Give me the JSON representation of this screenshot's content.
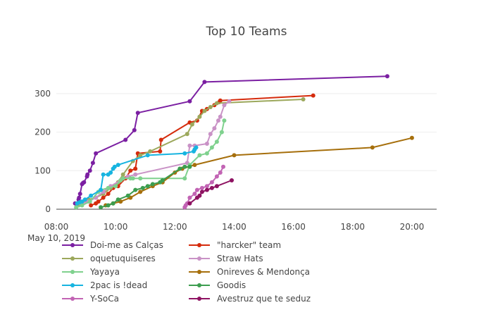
{
  "chart_data": {
    "type": "line",
    "title": "Top 10 Teams",
    "x_range": [
      "2019-05-10 08:00",
      "2019-05-10 20:50"
    ],
    "y_range": [
      0,
      360
    ],
    "grid": "horizontal",
    "legend_position": "bottom",
    "x_ticks": [
      "08:00",
      "10:00",
      "12:00",
      "14:00",
      "16:00",
      "18:00",
      "20:00"
    ],
    "x_tick_date": "May 10, 2019",
    "y_ticks": [
      "0",
      "100",
      "200",
      "300"
    ],
    "series": [
      {
        "name": "Doi-me as Calças",
        "color": "#7b1fa2",
        "x": [
          "08:38",
          "08:42",
          "08:45",
          "08:46",
          "08:48",
          "08:52",
          "08:54",
          "08:56",
          "09:02",
          "09:03",
          "09:08",
          "09:14",
          "09:20",
          "10:20",
          "10:38",
          "10:45",
          "12:30",
          "13:00",
          "19:10"
        ],
        "y": [
          15,
          15,
          25,
          30,
          40,
          65,
          68,
          70,
          85,
          90,
          100,
          120,
          145,
          180,
          205,
          250,
          280,
          330,
          345
        ]
      },
      {
        "name": "\"harcker\" team",
        "color": "#d52b0c",
        "x": [
          "09:10",
          "09:20",
          "09:25",
          "09:35",
          "09:45",
          "09:55",
          "10:05",
          "10:20",
          "10:30",
          "10:40",
          "10:45",
          "11:30",
          "11:32",
          "12:30",
          "12:45",
          "12:55",
          "13:05",
          "13:20",
          "13:30",
          "13:32",
          "16:40"
        ],
        "y": [
          10,
          15,
          20,
          30,
          40,
          55,
          60,
          80,
          100,
          105,
          145,
          150,
          180,
          225,
          230,
          255,
          260,
          270,
          278,
          282,
          295
        ]
      },
      {
        "name": "oquetuquiseres",
        "color": "#9ca85c",
        "x": [
          "08:45",
          "08:52",
          "09:05",
          "09:20",
          "09:35",
          "09:50",
          "10:05",
          "10:15",
          "10:35",
          "10:50",
          "11:10",
          "12:25",
          "12:35",
          "12:50",
          "13:00",
          "13:12",
          "13:25",
          "16:20"
        ],
        "y": [
          10,
          15,
          25,
          30,
          40,
          55,
          70,
          90,
          125,
          140,
          150,
          195,
          220,
          240,
          255,
          265,
          275,
          285
        ]
      },
      {
        "name": "Straw Hats",
        "color": "#c992c6",
        "x": [
          "08:50",
          "09:05",
          "09:20",
          "09:35",
          "09:50",
          "10:10",
          "10:25",
          "10:40",
          "12:25",
          "12:30",
          "12:40",
          "13:05",
          "13:12",
          "13:20",
          "13:28",
          "13:32",
          "13:40",
          "13:50"
        ],
        "y": [
          15,
          20,
          30,
          45,
          60,
          75,
          85,
          90,
          120,
          165,
          165,
          170,
          195,
          210,
          230,
          240,
          270,
          280
        ]
      },
      {
        "name": "Yayaya",
        "color": "#7fd18e",
        "x": [
          "08:40",
          "08:52",
          "09:08",
          "09:25",
          "09:30",
          "09:45",
          "10:00",
          "10:10",
          "10:15",
          "10:30",
          "10:35",
          "10:50",
          "12:20",
          "12:30",
          "12:50",
          "13:05",
          "13:15",
          "13:25",
          "13:35",
          "13:40"
        ],
        "y": [
          5,
          10,
          20,
          45,
          50,
          55,
          60,
          75,
          80,
          80,
          80,
          80,
          80,
          115,
          140,
          145,
          160,
          175,
          200,
          230
        ]
      },
      {
        "name": "Onireves & Mendonça",
        "color": "#a66f0c",
        "x": [
          "09:40",
          "09:55",
          "10:10",
          "10:30",
          "10:50",
          "11:15",
          "11:35",
          "12:00",
          "12:15",
          "12:40",
          "14:00",
          "18:40",
          "20:00"
        ],
        "y": [
          10,
          15,
          20,
          30,
          45,
          60,
          70,
          95,
          105,
          115,
          140,
          160,
          185
        ]
      },
      {
        "name": "2pac is !dead",
        "color": "#17b4e0",
        "x": [
          "08:42",
          "08:47",
          "08:52",
          "08:58",
          "09:10",
          "09:30",
          "09:35",
          "09:45",
          "09:50",
          "09:55",
          "09:58",
          "10:05",
          "11:05",
          "12:20",
          "12:38",
          "12:40",
          "12:43"
        ],
        "y": [
          15,
          18,
          20,
          25,
          35,
          50,
          90,
          90,
          95,
          105,
          110,
          115,
          140,
          145,
          150,
          155,
          160
        ]
      },
      {
        "name": "Goodis",
        "color": "#3c9d4f",
        "x": [
          "09:30",
          "09:45",
          "09:55",
          "10:05",
          "10:25",
          "10:40",
          "10:55",
          "11:05",
          "11:15",
          "11:30",
          "11:35",
          "12:10",
          "12:20",
          "12:30"
        ],
        "y": [
          5,
          10,
          15,
          25,
          35,
          50,
          55,
          60,
          65,
          70,
          75,
          105,
          110,
          110
        ]
      },
      {
        "name": "Y-SoCa",
        "color": "#c264b4",
        "x": [
          "12:20",
          "12:22",
          "12:25",
          "12:30",
          "12:40",
          "12:45",
          "12:55",
          "13:05",
          "13:15",
          "13:25",
          "13:32",
          "13:38"
        ],
        "y": [
          5,
          10,
          15,
          30,
          40,
          50,
          55,
          60,
          70,
          85,
          95,
          110
        ]
      },
      {
        "name": "Avestruz que te seduz",
        "color": "#8e1362",
        "x": [
          "12:30",
          "12:45",
          "12:50",
          "12:55",
          "13:05",
          "13:15",
          "13:25",
          "13:55"
        ],
        "y": [
          15,
          30,
          35,
          45,
          50,
          55,
          60,
          75
        ]
      }
    ]
  }
}
